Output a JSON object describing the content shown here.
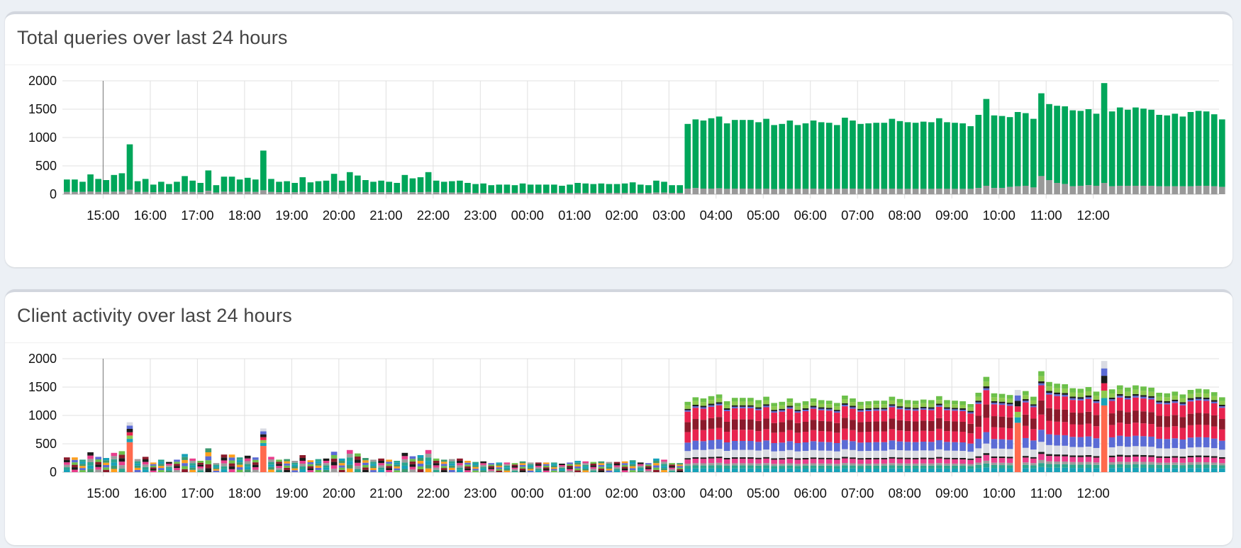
{
  "panels": {
    "queries": {
      "title": "Total queries over last 24 hours"
    },
    "clients": {
      "title": "Client activity over last 24 hours"
    }
  },
  "colors": {
    "page_bg": "#ecf0f5",
    "card_bg": "#ffffff",
    "permitted": "#00a65a",
    "blocked": "#999999",
    "grid": "#e0e0e0",
    "client_palette": [
      "#17a2b8",
      "#2ca58d",
      "#9c9c9c",
      "#e83e8c",
      "#1b1b1b",
      "#5b6bd5",
      "#d9dbe3",
      "#8b1a2b",
      "#e8234e",
      "#ffffff",
      "#8fc94f",
      "#6cc04a"
    ]
  },
  "chart_data": [
    {
      "type": "bar",
      "title": "Total queries over last 24 hours",
      "stacked": true,
      "ylim": [
        0,
        2000
      ],
      "yticks": [
        0,
        500,
        1000,
        1500,
        2000
      ],
      "xticks": [
        "15:00",
        "16:00",
        "17:00",
        "18:00",
        "19:00",
        "20:00",
        "21:00",
        "22:00",
        "23:00",
        "00:00",
        "01:00",
        "02:00",
        "03:00",
        "04:00",
        "05:00",
        "06:00",
        "07:00",
        "08:00",
        "09:00",
        "10:00",
        "11:00",
        "12:00"
      ],
      "grid": true,
      "legend": "none",
      "interval_minutes": 10,
      "first_bar_time": "14:10",
      "series": [
        {
          "color": "#00a65a",
          "values": [
            260,
            260,
            220,
            350,
            270,
            250,
            340,
            370,
            880,
            230,
            270,
            170,
            220,
            180,
            220,
            320,
            240,
            200,
            420,
            160,
            310,
            310,
            260,
            290,
            260,
            770,
            270,
            220,
            230,
            200,
            300,
            210,
            230,
            240,
            360,
            240,
            390,
            330,
            250,
            220,
            240,
            220,
            200,
            340,
            280,
            300,
            390,
            240,
            220,
            230,
            240,
            200,
            180,
            190,
            160,
            170,
            170,
            160,
            190,
            170,
            170,
            170,
            170,
            150,
            170,
            200,
            190,
            180,
            190,
            180,
            180,
            190,
            210,
            170,
            160,
            240,
            220,
            160,
            160,
            1240,
            1320,
            1300,
            1340,
            1370,
            1250,
            1310,
            1310,
            1310,
            1270,
            1330,
            1220,
            1240,
            1300,
            1220,
            1250,
            1300,
            1270,
            1260,
            1220,
            1350,
            1300,
            1240,
            1250,
            1260,
            1260,
            1330,
            1290,
            1270,
            1260,
            1280,
            1270,
            1340,
            1270,
            1260,
            1250,
            1200,
            1400,
            1680,
            1390,
            1380,
            1360,
            1450,
            1430,
            1330,
            1780,
            1590,
            1560,
            1550,
            1480,
            1470,
            1500,
            1420,
            1960,
            1460,
            1530,
            1490,
            1530,
            1510,
            1490,
            1400,
            1390,
            1420,
            1370,
            1450,
            1470,
            1460,
            1410,
            1320
          ]
        },
        {
          "color": "#999999",
          "values": [
            40,
            40,
            40,
            50,
            40,
            40,
            45,
            45,
            80,
            40,
            40,
            35,
            40,
            35,
            40,
            45,
            40,
            35,
            60,
            30,
            45,
            45,
            40,
            45,
            40,
            70,
            40,
            35,
            35,
            35,
            40,
            35,
            35,
            35,
            45,
            35,
            45,
            40,
            35,
            35,
            35,
            35,
            30,
            40,
            35,
            35,
            40,
            35,
            30,
            30,
            30,
            30,
            25,
            25,
            25,
            25,
            25,
            25,
            25,
            25,
            25,
            25,
            25,
            25,
            25,
            25,
            25,
            25,
            25,
            25,
            25,
            25,
            25,
            25,
            25,
            30,
            30,
            25,
            25,
            100,
            110,
            100,
            100,
            105,
            95,
            100,
            100,
            100,
            95,
            100,
            90,
            95,
            95,
            95,
            95,
            100,
            95,
            95,
            95,
            100,
            100,
            95,
            95,
            95,
            95,
            100,
            95,
            95,
            95,
            95,
            95,
            100,
            95,
            95,
            95,
            95,
            110,
            150,
            110,
            110,
            130,
            140,
            150,
            120,
            320,
            250,
            200,
            180,
            140,
            150,
            160,
            150,
            200,
            140,
            150,
            150,
            150,
            150,
            150,
            140,
            140,
            140,
            140,
            140,
            150,
            150,
            140,
            130
          ]
        }
      ]
    },
    {
      "type": "bar",
      "title": "Client activity over last 24 hours",
      "stacked": true,
      "ylim": [
        0,
        2000
      ],
      "yticks": [
        0,
        500,
        1000,
        1500,
        2000
      ],
      "xticks": [
        "15:00",
        "16:00",
        "17:00",
        "18:00",
        "19:00",
        "20:00",
        "21:00",
        "22:00",
        "23:00",
        "00:00",
        "01:00",
        "02:00",
        "03:00",
        "04:00",
        "05:00",
        "06:00",
        "07:00",
        "08:00",
        "09:00",
        "10:00",
        "11:00",
        "12:00"
      ],
      "grid": true,
      "legend": "none",
      "interval_minutes": 10,
      "first_bar_time": "14:10",
      "totals": [
        260,
        260,
        220,
        350,
        270,
        250,
        340,
        370,
        880,
        230,
        270,
        170,
        220,
        180,
        220,
        320,
        240,
        200,
        420,
        160,
        310,
        310,
        260,
        290,
        260,
        770,
        270,
        220,
        230,
        200,
        300,
        210,
        230,
        240,
        360,
        240,
        390,
        330,
        250,
        220,
        240,
        220,
        200,
        340,
        280,
        300,
        390,
        240,
        220,
        230,
        240,
        200,
        180,
        190,
        160,
        170,
        170,
        160,
        190,
        170,
        170,
        170,
        170,
        150,
        170,
        200,
        190,
        180,
        190,
        180,
        180,
        190,
        210,
        170,
        160,
        240,
        220,
        160,
        160,
        1240,
        1320,
        1300,
        1340,
        1370,
        1250,
        1310,
        1310,
        1310,
        1270,
        1330,
        1220,
        1240,
        1300,
        1220,
        1250,
        1300,
        1270,
        1260,
        1220,
        1350,
        1300,
        1240,
        1250,
        1260,
        1260,
        1330,
        1290,
        1270,
        1260,
        1280,
        1270,
        1340,
        1270,
        1260,
        1250,
        1200,
        1400,
        1680,
        1390,
        1380,
        1360,
        1450,
        1430,
        1330,
        1780,
        1590,
        1560,
        1550,
        1480,
        1470,
        1500,
        1420,
        1960,
        1460,
        1530,
        1490,
        1530,
        1510,
        1490,
        1400,
        1390,
        1420,
        1370,
        1450,
        1470,
        1460,
        1410,
        1320
      ],
      "client_shares": [
        {
          "color": "#17a2b8",
          "share": 0.05
        },
        {
          "color": "#2ca58d",
          "share": 0.04
        },
        {
          "color": "#9c9c9c",
          "share": 0.03
        },
        {
          "color": "#e83e8c",
          "share": 0.06
        },
        {
          "color": "#1b1b1b",
          "share": 0.02
        },
        {
          "color": "#d9dbe3",
          "share": 0.1
        },
        {
          "color": "#5b6bd5",
          "share": 0.12
        },
        {
          "color": "#e8234e",
          "share": 0.15
        },
        {
          "color": "#8b1a2b",
          "share": 0.14
        },
        {
          "color": "#e8234e",
          "share": 0.15
        },
        {
          "color": "#5b6bd5",
          "share": 0.02
        },
        {
          "color": "#1b1b1b",
          "share": 0.02
        },
        {
          "color": "#8fc94f",
          "share": 0.05
        },
        {
          "color": "#6cc04a",
          "share": 0.05
        }
      ],
      "spike_color": "#ff6a4d",
      "spike_bars": [
        8,
        25,
        121,
        132
      ]
    }
  ]
}
